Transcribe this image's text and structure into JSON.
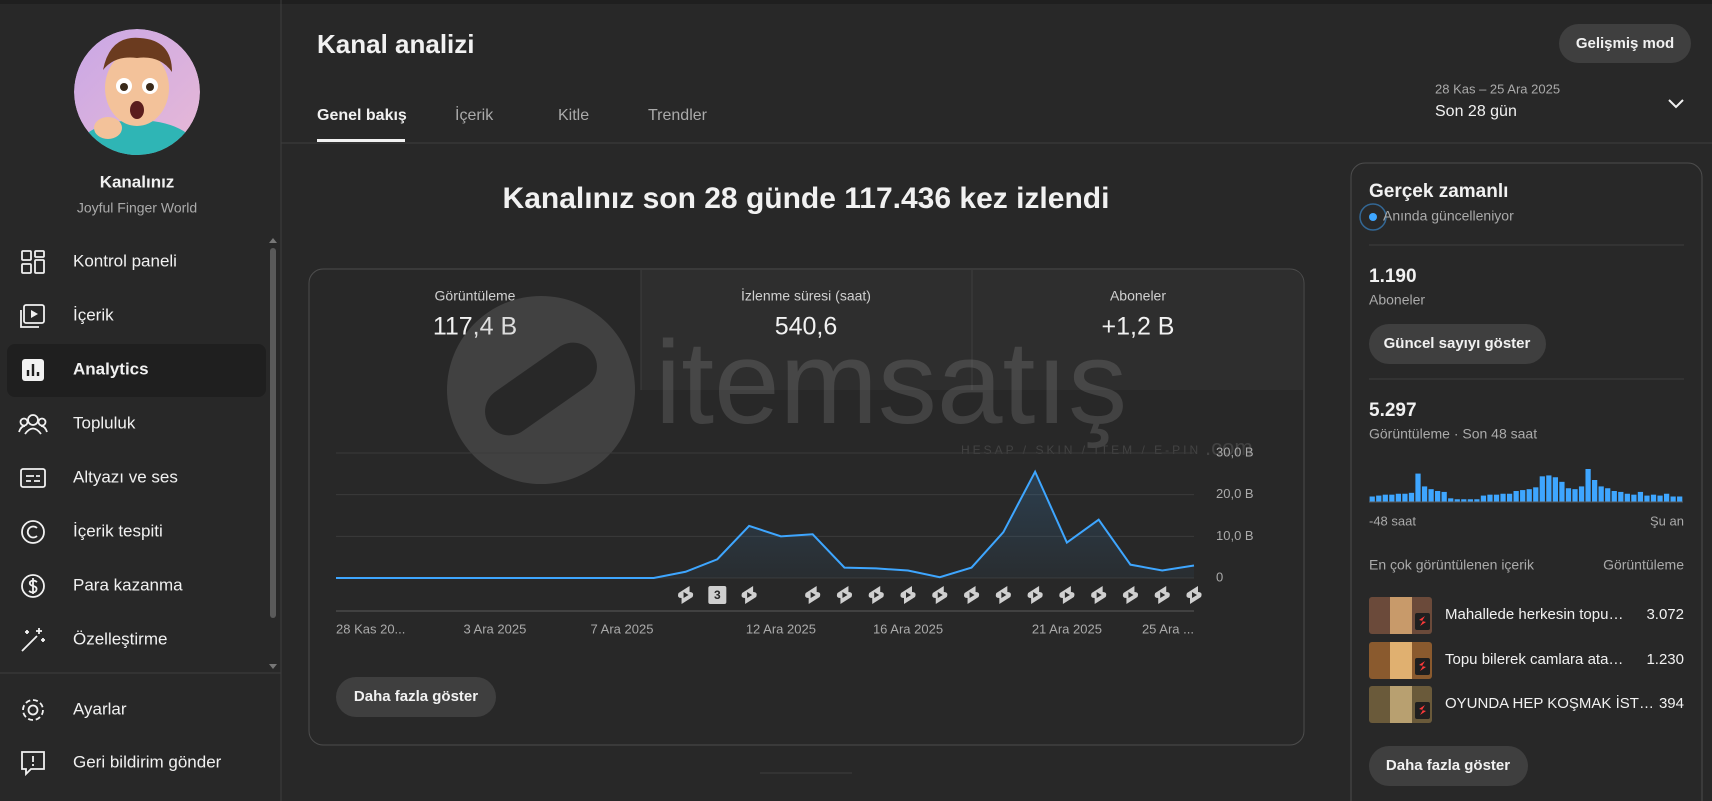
{
  "sidebar": {
    "channel_label": "Kanalınız",
    "channel_name": "Joyful Finger World",
    "nav": [
      "Kontrol paneli",
      "İçerik",
      "Analytics",
      "Topluluk",
      "Altyazı ve ses",
      "İçerik tespiti",
      "Para kazanma",
      "Özelleştirme"
    ],
    "footer_nav": [
      "Ayarlar",
      "Geri bildirim gönder"
    ]
  },
  "header": {
    "title": "Kanal analizi",
    "advanced_button": "Gelişmiş mod",
    "tabs": [
      "Genel bakış",
      "İçerik",
      "Kitle",
      "Trendler"
    ],
    "date_range": "28 Kas – 25 Ara 2025",
    "period": "Son 28 gün"
  },
  "overview": {
    "headline": "Kanalınız son 28 günde 117.436 kez izlendi",
    "stats": [
      {
        "label": "Görüntüleme",
        "value": "117,4 B"
      },
      {
        "label": "İzlenme süresi (saat)",
        "value": "540,6"
      },
      {
        "label": "Aboneler",
        "value": "+1,2 B"
      }
    ],
    "publish_badge": "3",
    "show_more": "Daha fazla göster"
  },
  "chart_data": [
    {
      "type": "line",
      "x": [
        "28 Kas 20...",
        null,
        null,
        null,
        null,
        "3 Ara 2025",
        null,
        null,
        null,
        "7 Ara 2025",
        null,
        null,
        null,
        null,
        "12 Ara 2025",
        null,
        null,
        null,
        "16 Ara 2025",
        null,
        null,
        null,
        null,
        "21 Ara 2025",
        null,
        null,
        null,
        "25 Ara ..."
      ],
      "values": [
        0,
        0,
        0,
        0,
        0,
        0,
        0,
        0,
        0,
        0,
        0,
        1500,
        4500,
        12500,
        10000,
        10500,
        2500,
        2300,
        1800,
        200,
        2500,
        11000,
        25500,
        8500,
        14000,
        3200,
        1800,
        3000
      ],
      "color": "#3ea6ff",
      "ylim": [
        0,
        30000
      ],
      "yticks": [
        0,
        {
          "value": 10000,
          "label": "10,0 B"
        },
        {
          "value": 20000,
          "label": "20,0 B"
        },
        {
          "value": 30000,
          "label": "30,0 B"
        }
      ],
      "grid": true
    },
    {
      "type": "bar",
      "values": [
        60,
        70,
        80,
        80,
        90,
        90,
        100,
        310,
        170,
        140,
        120,
        110,
        40,
        30,
        30,
        30,
        30,
        70,
        80,
        80,
        90,
        90,
        120,
        130,
        140,
        160,
        280,
        290,
        270,
        220,
        150,
        140,
        170,
        360,
        240,
        170,
        150,
        120,
        110,
        90,
        80,
        110,
        70,
        80,
        70,
        90,
        60,
        60
      ],
      "color": "#3ea6ff",
      "x_start_label": "-48 saat",
      "x_end_label": "Şu an"
    }
  ],
  "realtime": {
    "title": "Gerçek zamanlı",
    "status": "Anında güncelleniyor",
    "subscribers": "1.190",
    "subscribers_label": "Aboneler",
    "subscribers_button": "Güncel sayıyı göster",
    "views": "5.297",
    "views_label": "Görüntüleme · Son 48 saat",
    "top_content_title": "En çok görüntülenen içerik",
    "top_content_column": "Görüntüleme",
    "top_content": [
      {
        "title": "Mahallede herkesin topu…",
        "views": "3.072"
      },
      {
        "title": "Topu bilerek camlara ata…",
        "views": "1.230"
      },
      {
        "title": "OYUNDA HEP KOŞMAK İST…",
        "views": "394"
      }
    ],
    "show_more": "Daha fazla göster"
  },
  "watermark": {
    "brand": "itemsatış",
    "tagline": "HESAP / SKIN / ITEM / E-PIN",
    "domain": ".com"
  }
}
